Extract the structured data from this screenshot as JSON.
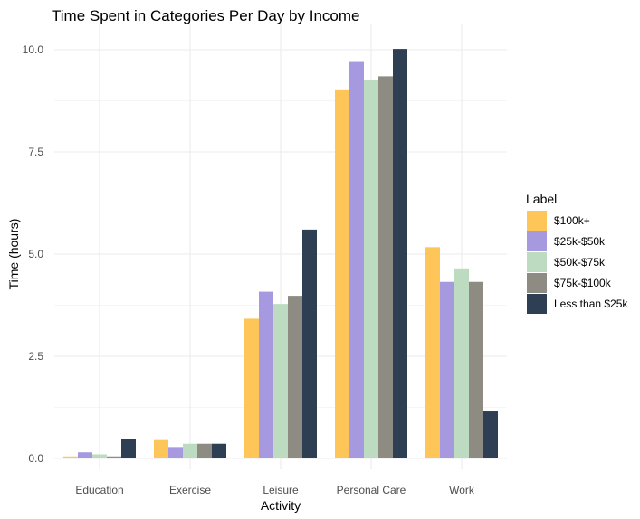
{
  "chart_data": {
    "type": "bar",
    "title": "Time Spent in Categories Per Day by Income",
    "xlabel": "Activity",
    "ylabel": "Time (hours)",
    "ylim": [
      0,
      10.3
    ],
    "yticks": [
      0.0,
      2.5,
      5.0,
      7.5,
      10.0
    ],
    "ytick_labels": [
      "0.0",
      "2.5",
      "5.0",
      "7.5",
      "10.0"
    ],
    "grid": true,
    "legend_title": "Label",
    "legend_position": "right",
    "categories": [
      "Education",
      "Exercise",
      "Leisure",
      "Personal Care",
      "Work"
    ],
    "series": [
      {
        "name": "$100k+",
        "color": "#fec659",
        "values": [
          0.05,
          0.45,
          3.42,
          9.03,
          5.17
        ]
      },
      {
        "name": "$25k-$50k",
        "color": "#a799e0",
        "values": [
          0.15,
          0.28,
          4.08,
          9.7,
          4.32
        ]
      },
      {
        "name": "$50k-$75k",
        "color": "#bddbc0",
        "values": [
          0.1,
          0.36,
          3.78,
          9.25,
          4.65
        ]
      },
      {
        "name": "$75k-$100k",
        "color": "#8e8c82",
        "values": [
          0.05,
          0.36,
          3.98,
          9.35,
          4.32
        ]
      },
      {
        "name": "Less than $25k",
        "color": "#2e3f54",
        "values": [
          0.47,
          0.36,
          5.6,
          10.02,
          1.15
        ]
      }
    ]
  }
}
